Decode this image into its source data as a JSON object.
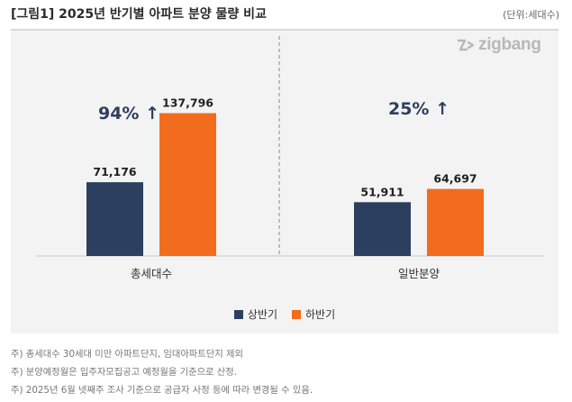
{
  "header": {
    "title": "[그림1] 2025년 반기별 아파트 분양 물량 비교",
    "unit": "(단위:세대수)"
  },
  "logo": {
    "text": "zigbang"
  },
  "colors": {
    "first_half": "#2d3f5f",
    "second_half": "#f26c1d",
    "annotation": "#2d3f5f",
    "panel": "#f3f3f3"
  },
  "chart_data": {
    "type": "bar",
    "categories": [
      "총세대수",
      "일반분양"
    ],
    "series": [
      {
        "name": "상반기",
        "values": [
          71176,
          51911
        ]
      },
      {
        "name": "하반기",
        "values": [
          137796,
          64697
        ]
      }
    ],
    "data_labels": [
      [
        "71,176",
        "51,911"
      ],
      [
        "137,796",
        "64,697"
      ]
    ],
    "annotations": [
      "94% ↑",
      "25% ↑"
    ],
    "ylim": [
      0,
      160000
    ],
    "legend_position": "bottom",
    "grid": false
  },
  "notes": [
    "주) 총세대수 30세대 미만 아파트단지, 임대아파트단지 제외",
    "주) 분양예정월은 입주자모집공고 예정월을 기준으로 산정.",
    "주) 2025년 6월 넷째주 조사 기준으로 공급자 사정 등에 따라 변경될 수 있음."
  ]
}
